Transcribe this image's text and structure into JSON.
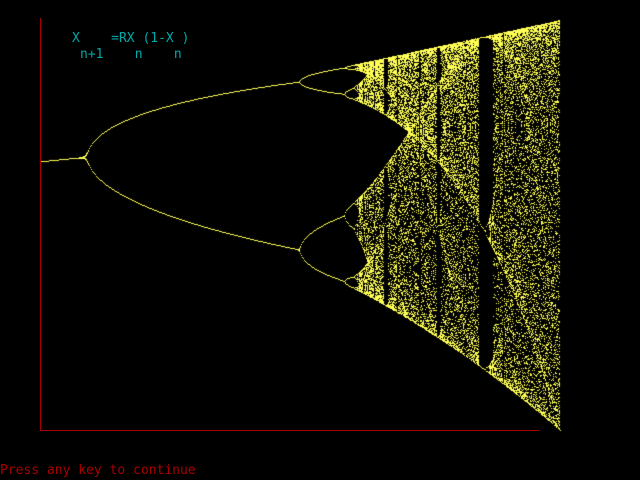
{
  "equation": {
    "main": "X    =RX (1-X )",
    "subscripts": "n+1    n    n"
  },
  "prompt": "Press any key to continue",
  "colors": {
    "background": "#000000",
    "points": "#ffff55",
    "axes": "#a80000",
    "equation": "#00a8a8",
    "prompt": "#a80000"
  },
  "chart_data": {
    "type": "scatter",
    "r_range": [
      2.9,
      4.0
    ],
    "x_range": [
      0,
      1
    ]
  }
}
